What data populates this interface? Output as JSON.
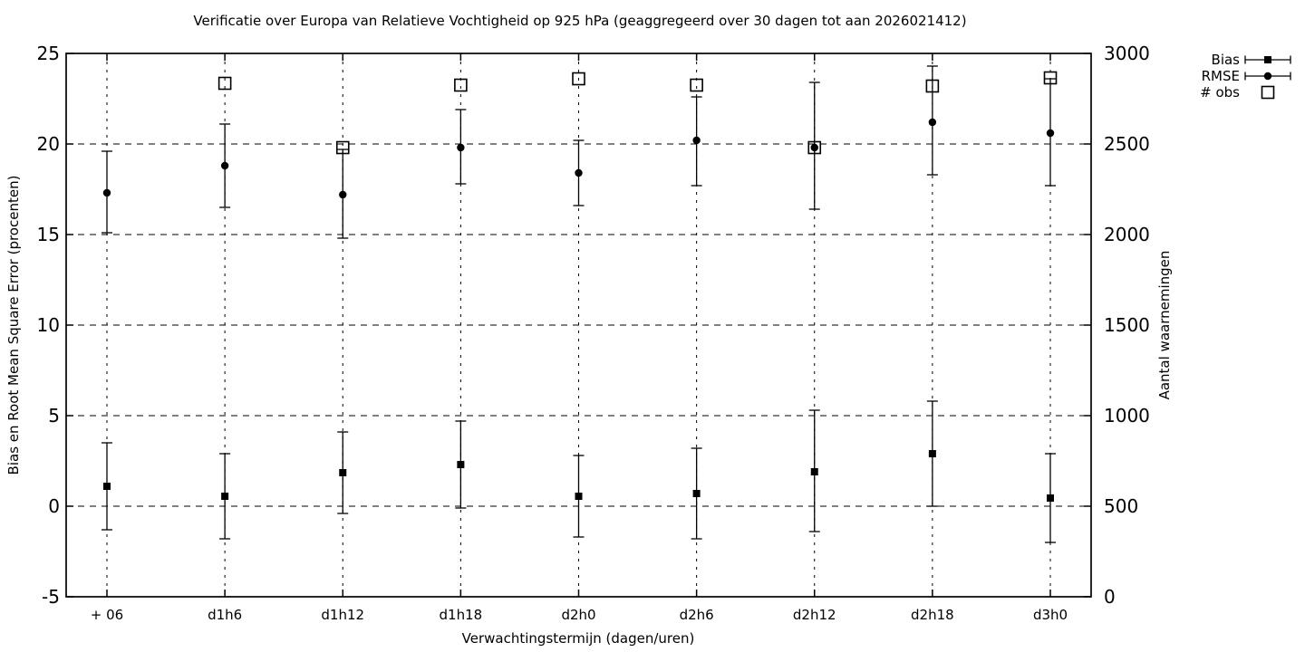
{
  "chart_data": {
    "type": "scatter",
    "title": "Verificatie over Europa van Relatieve Vochtigheid op 925 hPa (geaggregeerd over 30 dagen tot aan 2026021412)",
    "xlabel": "Verwachtingstermijn (dagen/uren)",
    "ylabel": "Bias en Root Mean Square Error (procenten)",
    "y2label": "Aantal waarnemingen",
    "categories": [
      "+ 06",
      "d1h6",
      "d1h12",
      "d1h18",
      "d2h0",
      "d2h6",
      "d2h12",
      "d2h18",
      "d3h0"
    ],
    "ylim": [
      -5,
      25
    ],
    "y2lim": [
      0,
      3000
    ],
    "yticks": [
      -5,
      0,
      5,
      10,
      15,
      20,
      25
    ],
    "y2ticks": [
      0,
      500,
      1000,
      1500,
      2000,
      2500,
      3000
    ],
    "grid": true,
    "legend_position": "top-right-outside",
    "colors": {
      "foreground": "#000000",
      "background": "#ffffff"
    },
    "series": [
      {
        "name": "Bias",
        "axis": "left",
        "marker": "filled-square",
        "values": [
          1.1,
          0.55,
          1.85,
          2.3,
          0.55,
          0.7,
          1.9,
          2.9,
          0.45
        ],
        "err_lo": [
          -1.3,
          -1.8,
          -0.4,
          -0.1,
          -1.7,
          -1.8,
          -1.4,
          0.0,
          -2.0
        ],
        "err_hi": [
          3.5,
          2.9,
          4.1,
          4.7,
          2.8,
          3.2,
          5.3,
          5.8,
          2.9
        ]
      },
      {
        "name": "RMSE",
        "axis": "left",
        "marker": "filled-circle",
        "values": [
          17.3,
          18.8,
          17.2,
          19.8,
          18.4,
          20.2,
          19.8,
          21.2,
          20.6
        ],
        "err_lo": [
          15.1,
          16.5,
          14.8,
          17.8,
          16.6,
          17.7,
          16.4,
          18.3,
          17.7
        ],
        "err_hi": [
          19.6,
          21.1,
          19.7,
          21.9,
          20.2,
          22.6,
          23.4,
          24.3,
          23.6
        ]
      },
      {
        "name": "# obs",
        "axis": "right",
        "marker": "open-square",
        "values": [
          null,
          2835,
          2480,
          2825,
          2860,
          2825,
          2480,
          2820,
          2865
        ]
      }
    ]
  }
}
